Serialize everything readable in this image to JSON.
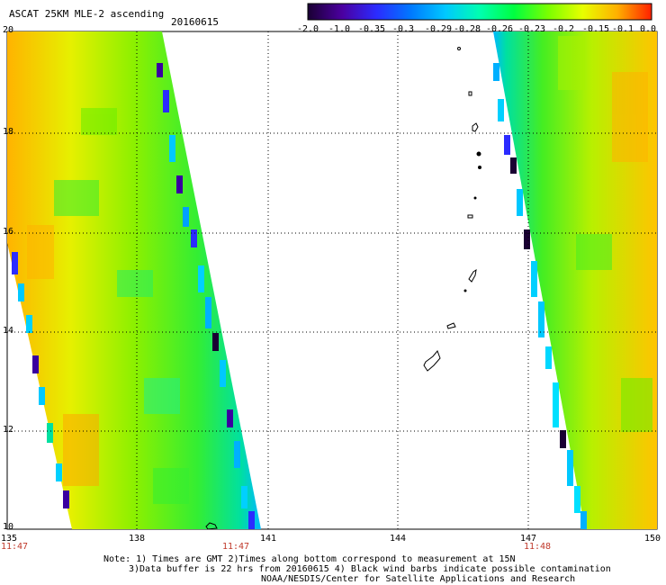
{
  "header": {
    "title": "ASCAT 25KM MLE-2 ascending",
    "date": "20160615"
  },
  "colorbar": {
    "ticks": [
      "-2.0",
      "-1.0",
      "-0.35",
      "-0.3",
      "-0.29",
      "-0.28",
      "-0.26",
      "-0.23",
      "-0.2",
      "-0.15",
      "-0.1",
      "0.0"
    ],
    "colors": [
      "#1a0033",
      "#4b00a0",
      "#3a2cff",
      "#0079ff",
      "#00c8ff",
      "#00ffb0",
      "#00ff40",
      "#7bff00",
      "#d8ff00",
      "#ffd000",
      "#ff8000",
      "#ff2000"
    ]
  },
  "map": {
    "lat_labels": [
      "20",
      "18",
      "16",
      "14",
      "12",
      "10"
    ],
    "lon_labels": [
      "135",
      "138",
      "141",
      "144",
      "147",
      "150"
    ],
    "time_labels": [
      "11:47",
      "11:47",
      "11:48"
    ]
  },
  "notes": [
    "Note: 1) Times are GMT 2)Times along bottom correspond to measurement at 15N",
    "3)Data buffer is 22 hrs from 20160615 4) Black wind barbs indicate possible contamination",
    "NOAA/NESDIS/Center for Satellite Applications and Research"
  ]
}
